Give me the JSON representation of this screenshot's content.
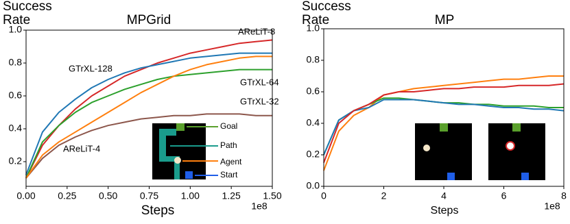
{
  "chart_data": [
    {
      "type": "line",
      "title": "MPGrid",
      "ylabel": "Success Rate",
      "xlabel": "Steps",
      "x_offset_label": "1e8",
      "x": [
        0,
        0.1,
        0.2,
        0.3,
        0.4,
        0.5,
        0.6,
        0.7,
        0.8,
        0.9,
        1.0,
        1.1,
        1.2,
        1.3,
        1.4,
        1.5
      ],
      "xlim": [
        0,
        1.5
      ],
      "xticks": [
        {
          "value": 0,
          "label": "0.00"
        },
        0.25,
        {
          "value": 0.5,
          "label": "0.50"
        },
        0.75,
        {
          "value": 1,
          "label": "1.00"
        },
        1.25,
        {
          "value": 1.5,
          "label": "1.50"
        }
      ],
      "ylim": [
        0.05,
        1.0
      ],
      "yticks": [
        0.2,
        0.4,
        0.6,
        0.8,
        {
          "value": 1,
          "label": "1.0"
        }
      ],
      "series": [
        {
          "name": "AReLiT-8",
          "color": "#d62728",
          "values": [
            0.1,
            0.3,
            0.42,
            0.52,
            0.6,
            0.66,
            0.72,
            0.76,
            0.8,
            0.83,
            0.86,
            0.88,
            0.9,
            0.92,
            0.93,
            0.94
          ]
        },
        {
          "name": "GTrXL-128",
          "color": "#1f77b4",
          "values": [
            0.12,
            0.38,
            0.5,
            0.58,
            0.65,
            0.7,
            0.74,
            0.77,
            0.79,
            0.81,
            0.83,
            0.84,
            0.85,
            0.86,
            0.86,
            0.86
          ]
        },
        {
          "name": "GTrXL-64",
          "color": "#2ca02c",
          "values": [
            0.1,
            0.32,
            0.42,
            0.5,
            0.56,
            0.6,
            0.64,
            0.67,
            0.7,
            0.72,
            0.73,
            0.74,
            0.75,
            0.76,
            0.76,
            0.76
          ]
        },
        {
          "name": "GTrXL-32",
          "color": "#8c564b",
          "values": [
            0.1,
            0.22,
            0.3,
            0.35,
            0.39,
            0.42,
            0.44,
            0.46,
            0.47,
            0.48,
            0.48,
            0.49,
            0.49,
            0.49,
            0.48,
            0.48
          ]
        },
        {
          "name": "AReLiT-4",
          "color": "#ff7f0e",
          "values": [
            0.1,
            0.24,
            0.32,
            0.38,
            0.44,
            0.5,
            0.56,
            0.62,
            0.67,
            0.72,
            0.76,
            0.79,
            0.81,
            0.83,
            0.84,
            0.84
          ]
        }
      ],
      "inset_annotations": [
        "Goal",
        "Path",
        "Agent",
        "Start"
      ]
    },
    {
      "type": "line",
      "title": "MP",
      "ylabel": "Success Rate",
      "xlabel": "Steps",
      "x_offset_label": "1e8",
      "x": [
        0,
        0.5,
        1,
        1.5,
        2,
        2.5,
        3,
        3.5,
        4,
        4.5,
        5,
        5.5,
        6,
        6.5,
        7,
        7.5,
        8
      ],
      "xlim": [
        0,
        8
      ],
      "xticks": [
        0,
        2,
        4,
        6,
        8
      ],
      "ylim": [
        0,
        1.0
      ],
      "yticks": [
        {
          "value": 0,
          "label": "0.0"
        },
        0.2,
        0.4,
        0.6,
        0.8,
        {
          "value": 1,
          "label": "1.0"
        }
      ],
      "series": [
        {
          "color": "#ff7f0e",
          "values": [
            0.1,
            0.35,
            0.45,
            0.5,
            0.58,
            0.6,
            0.62,
            0.63,
            0.64,
            0.65,
            0.66,
            0.67,
            0.68,
            0.68,
            0.69,
            0.7,
            0.7
          ]
        },
        {
          "color": "#2ca02c",
          "values": [
            0.2,
            0.42,
            0.48,
            0.52,
            0.56,
            0.56,
            0.55,
            0.54,
            0.53,
            0.53,
            0.52,
            0.52,
            0.51,
            0.51,
            0.51,
            0.5,
            0.5
          ]
        },
        {
          "color": "#1f77b4",
          "values": [
            0.2,
            0.42,
            0.48,
            0.5,
            0.55,
            0.55,
            0.55,
            0.54,
            0.53,
            0.52,
            0.52,
            0.51,
            0.5,
            0.5,
            0.49,
            0.49,
            0.48
          ]
        },
        {
          "color": "#d62728",
          "values": [
            0.15,
            0.4,
            0.48,
            0.52,
            0.58,
            0.6,
            0.6,
            0.61,
            0.62,
            0.62,
            0.63,
            0.63,
            0.63,
            0.64,
            0.64,
            0.64,
            0.65
          ]
        }
      ]
    }
  ]
}
